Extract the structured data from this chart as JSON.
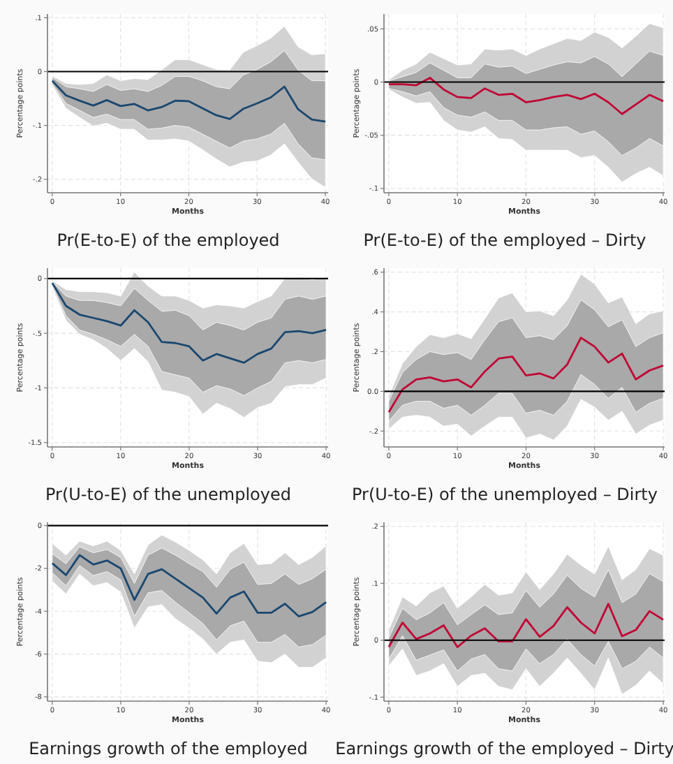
{
  "chart_data": [
    {
      "type": "line",
      "title": "Pr(E-to-E) of the employed",
      "xlabel": "Months",
      "ylabel": "Percentage points",
      "x": [
        0,
        2,
        4,
        6,
        8,
        10,
        12,
        14,
        16,
        18,
        20,
        22,
        24,
        26,
        28,
        30,
        32,
        34,
        36,
        38,
        40
      ],
      "xlim": [
        -0.7,
        40.4
      ],
      "xticks": [
        0,
        10,
        20,
        30,
        40
      ],
      "ylim": [
        -0.225,
        0.107
      ],
      "yticks": [
        {
          "value": 0.1,
          "label": ".1"
        },
        0,
        {
          "value": -0.1,
          "label": "-.1"
        },
        {
          "value": -0.2,
          "label": "-.2"
        }
      ],
      "grid": true,
      "ref_lines": [
        {
          "axis": "y",
          "value": 0,
          "color": "#000000"
        }
      ],
      "series": [
        {
          "type": "line",
          "color": "#d2d2d2",
          "values": [
            null,
            null,
            null,
            null,
            null,
            null,
            null,
            null,
            null,
            null,
            null,
            null,
            null,
            null,
            null,
            null,
            null,
            null,
            null,
            null,
            null
          ],
          "lower": [
            -0.025,
            -0.068,
            -0.085,
            -0.101,
            -0.096,
            -0.107,
            -0.107,
            -0.127,
            -0.127,
            -0.125,
            -0.129,
            -0.145,
            -0.162,
            -0.177,
            -0.168,
            -0.166,
            -0.155,
            -0.134,
            -0.168,
            -0.199,
            -0.215
          ],
          "upper": [
            -0.008,
            -0.022,
            -0.024,
            -0.022,
            -0.006,
            -0.017,
            -0.013,
            -0.015,
            0.003,
            0.022,
            0.022,
            0.013,
            0.004,
            0.003,
            0.036,
            0.048,
            0.062,
            0.084,
            0.046,
            0.031,
            0.033
          ]
        },
        {
          "type": "line",
          "color": "#a9a9a9",
          "values": [
            null,
            null,
            null,
            null,
            null,
            null,
            null,
            null,
            null,
            null,
            null,
            null,
            null,
            null,
            null,
            null,
            null,
            null,
            null,
            null,
            null
          ],
          "lower": [
            -0.022,
            -0.059,
            -0.072,
            -0.085,
            -0.079,
            -0.089,
            -0.089,
            -0.107,
            -0.105,
            -0.1,
            -0.103,
            -0.116,
            -0.129,
            -0.142,
            -0.129,
            -0.125,
            -0.116,
            -0.096,
            -0.134,
            -0.16,
            -0.164
          ],
          "upper": [
            -0.011,
            -0.028,
            -0.032,
            -0.037,
            -0.024,
            -0.035,
            -0.032,
            -0.037,
            -0.026,
            -0.009,
            -0.009,
            -0.017,
            -0.028,
            -0.032,
            -0.006,
            0.004,
            0.018,
            0.039,
            0.003,
            -0.017,
            -0.017
          ]
        },
        {
          "type": "line",
          "color": "#1a476f",
          "values": [
            -0.017,
            -0.044,
            -0.054,
            -0.063,
            -0.053,
            -0.064,
            -0.06,
            -0.072,
            -0.066,
            -0.054,
            -0.055,
            -0.068,
            -0.081,
            -0.088,
            -0.069,
            -0.059,
            -0.048,
            -0.028,
            -0.07,
            -0.089,
            -0.093
          ]
        }
      ]
    },
    {
      "type": "line",
      "title": "Pr(E-to-E) of the employed – Dirty",
      "xlabel": "Months",
      "ylabel": "Percentage points",
      "x": [
        0,
        2,
        4,
        6,
        8,
        10,
        12,
        14,
        16,
        18,
        20,
        22,
        24,
        26,
        28,
        30,
        32,
        34,
        36,
        38,
        40
      ],
      "xlim": [
        -0.7,
        40.2
      ],
      "xticks": [
        0,
        10,
        20,
        30,
        40
      ],
      "ylim": [
        -0.104,
        0.064
      ],
      "yticks": [
        {
          "value": 0.05,
          "label": ".05"
        },
        0,
        {
          "value": -0.05,
          "label": "-.05"
        },
        {
          "value": -0.1,
          "label": "-.1"
        }
      ],
      "grid": true,
      "ref_lines": [
        {
          "axis": "y",
          "value": 0,
          "color": "#000000"
        }
      ],
      "series": [
        {
          "type": "line",
          "color": "#d2d2d2",
          "values": [
            null,
            null,
            null,
            null,
            null,
            null,
            null,
            null,
            null,
            null,
            null,
            null,
            null,
            null,
            null,
            null,
            null,
            null,
            null,
            null,
            null
          ],
          "lower": [
            -0.007,
            -0.014,
            -0.02,
            -0.019,
            -0.036,
            -0.045,
            -0.047,
            -0.042,
            -0.053,
            -0.054,
            -0.064,
            -0.064,
            -0.064,
            -0.064,
            -0.071,
            -0.069,
            -0.08,
            -0.094,
            -0.086,
            -0.08,
            -0.088
          ],
          "upper": [
            0.002,
            0.011,
            0.017,
            0.028,
            0.022,
            0.016,
            0.017,
            0.031,
            0.03,
            0.031,
            0.025,
            0.031,
            0.036,
            0.041,
            0.039,
            0.047,
            0.042,
            0.032,
            0.043,
            0.055,
            0.051
          ]
        },
        {
          "type": "line",
          "color": "#a9a9a9",
          "values": [
            null,
            null,
            null,
            null,
            null,
            null,
            null,
            null,
            null,
            null,
            null,
            null,
            null,
            null,
            null,
            null,
            null,
            null,
            null,
            null,
            null
          ],
          "lower": [
            -0.006,
            -0.009,
            -0.013,
            -0.009,
            -0.024,
            -0.031,
            -0.033,
            -0.028,
            -0.036,
            -0.036,
            -0.045,
            -0.045,
            -0.043,
            -0.042,
            -0.049,
            -0.046,
            -0.056,
            -0.069,
            -0.062,
            -0.053,
            -0.06
          ],
          "upper": [
            0.001,
            0.005,
            0.009,
            0.018,
            0.011,
            0.004,
            0.004,
            0.017,
            0.014,
            0.015,
            0.008,
            0.012,
            0.016,
            0.019,
            0.018,
            0.024,
            0.017,
            0.005,
            0.017,
            0.029,
            0.025
          ]
        },
        {
          "type": "line",
          "color": "#c10534",
          "values": [
            -0.002,
            -0.002,
            -0.003,
            0.004,
            -0.007,
            -0.014,
            -0.015,
            -0.006,
            -0.012,
            -0.011,
            -0.019,
            -0.017,
            -0.014,
            -0.012,
            -0.016,
            -0.011,
            -0.019,
            -0.03,
            -0.021,
            -0.012,
            -0.018
          ]
        }
      ]
    },
    {
      "type": "line",
      "title": "Pr(U-to-E) of the unemployed",
      "xlabel": "Months",
      "ylabel": "Percentage points",
      "x": [
        0,
        2,
        4,
        6,
        8,
        10,
        12,
        14,
        16,
        18,
        20,
        22,
        24,
        26,
        28,
        30,
        32,
        34,
        36,
        38,
        40
      ],
      "xlim": [
        -0.7,
        40.3
      ],
      "xticks": [
        0,
        10,
        20,
        30,
        40
      ],
      "ylim": [
        -1.54,
        0.095
      ],
      "yticks": [
        0,
        {
          "value": -0.5,
          "label": "-.5"
        },
        -1,
        -1.5
      ],
      "grid": true,
      "ref_lines": [
        {
          "axis": "y",
          "value": 0,
          "color": "#000000"
        }
      ],
      "series": [
        {
          "type": "line",
          "color": "#d2d2d2",
          "values": [
            null,
            null,
            null,
            null,
            null,
            null,
            null,
            null,
            null,
            null,
            null,
            null,
            null,
            null,
            null,
            null,
            null,
            null,
            null,
            null,
            null
          ],
          "lower": [
            -0.08,
            -0.38,
            -0.51,
            -0.56,
            -0.64,
            -0.75,
            -0.64,
            -0.76,
            -1.02,
            -1.04,
            -1.08,
            -1.24,
            -1.14,
            -1.19,
            -1.27,
            -1.18,
            -1.14,
            -0.99,
            -0.97,
            -0.97,
            -0.91
          ],
          "upper": [
            -0.02,
            -0.1,
            -0.12,
            -0.12,
            -0.13,
            -0.16,
            0.06,
            -0.07,
            -0.16,
            -0.16,
            -0.2,
            -0.27,
            -0.24,
            -0.25,
            -0.27,
            -0.21,
            -0.16,
            0,
            0.01,
            -0.01,
            0.01
          ]
        },
        {
          "type": "line",
          "color": "#a9a9a9",
          "values": [
            null,
            null,
            null,
            null,
            null,
            null,
            null,
            null,
            null,
            null,
            null,
            null,
            null,
            null,
            null,
            null,
            null,
            null,
            null,
            null,
            null
          ],
          "lower": [
            -0.06,
            -0.34,
            -0.47,
            -0.51,
            -0.56,
            -0.62,
            -0.51,
            -0.62,
            -0.85,
            -0.88,
            -0.91,
            -1.04,
            -0.98,
            -1.01,
            -1.07,
            -1,
            -0.94,
            -0.77,
            -0.75,
            -0.77,
            -0.74
          ],
          "upper": [
            -0.03,
            -0.16,
            -0.2,
            -0.2,
            -0.22,
            -0.25,
            -0.09,
            -0.2,
            -0.3,
            -0.29,
            -0.34,
            -0.47,
            -0.4,
            -0.43,
            -0.47,
            -0.4,
            -0.36,
            -0.19,
            -0.16,
            -0.19,
            -0.16
          ]
        },
        {
          "type": "line",
          "color": "#1a476f",
          "values": [
            -0.04,
            -0.25,
            -0.33,
            -0.36,
            -0.39,
            -0.43,
            -0.29,
            -0.4,
            -0.58,
            -0.59,
            -0.62,
            -0.75,
            -0.69,
            -0.73,
            -0.77,
            -0.69,
            -0.64,
            -0.49,
            -0.48,
            -0.5,
            -0.47
          ]
        }
      ]
    },
    {
      "type": "line",
      "title": "Pr(U-to-E) of the unemployed – Dirty",
      "xlabel": "Months",
      "ylabel": "Percentage points",
      "x": [
        0,
        2,
        4,
        6,
        8,
        10,
        12,
        14,
        16,
        18,
        20,
        22,
        24,
        26,
        28,
        30,
        32,
        34,
        36,
        38,
        40
      ],
      "xlim": [
        -0.7,
        40.2
      ],
      "xticks": [
        0,
        10,
        20,
        30,
        40
      ],
      "ylim": [
        -0.28,
        0.62
      ],
      "yticks": [
        {
          "value": 0.6,
          "label": ".6"
        },
        {
          "value": 0.4,
          "label": ".4"
        },
        {
          "value": 0.2,
          "label": ".2"
        },
        {
          "value": 0,
          "label": "0.0"
        },
        {
          "value": -0.2,
          "label": "-.2"
        }
      ],
      "grid": true,
      "ref_lines": [
        {
          "axis": "y",
          "value": 0,
          "color": "#000000"
        }
      ],
      "series": [
        {
          "type": "line",
          "color": "#d2d2d2",
          "values": [
            null,
            null,
            null,
            null,
            null,
            null,
            null,
            null,
            null,
            null,
            null,
            null,
            null,
            null,
            null,
            null,
            null,
            null,
            null,
            null,
            null
          ],
          "lower": [
            -0.19,
            -0.13,
            -0.12,
            -0.13,
            -0.175,
            -0.165,
            -0.225,
            -0.175,
            -0.13,
            -0.13,
            -0.235,
            -0.215,
            -0.245,
            -0.175,
            -0.04,
            -0.08,
            -0.145,
            -0.1,
            -0.215,
            -0.17,
            -0.145
          ],
          "upper": [
            -0.025,
            0.14,
            0.225,
            0.285,
            0.27,
            0.29,
            0.265,
            0.365,
            0.47,
            0.495,
            0.4,
            0.405,
            0.38,
            0.46,
            0.59,
            0.54,
            0.445,
            0.475,
            0.34,
            0.39,
            0.405
          ]
        },
        {
          "type": "line",
          "color": "#a9a9a9",
          "values": [
            null,
            null,
            null,
            null,
            null,
            null,
            null,
            null,
            null,
            null,
            null,
            null,
            null,
            null,
            null,
            null,
            null,
            null,
            null,
            null,
            null
          ],
          "lower": [
            -0.15,
            -0.07,
            -0.05,
            -0.05,
            -0.085,
            -0.07,
            -0.12,
            -0.07,
            -0.01,
            -0.01,
            -0.11,
            -0.095,
            -0.12,
            -0.05,
            0.085,
            0.035,
            -0.035,
            0.02,
            -0.105,
            -0.06,
            -0.035
          ],
          "upper": [
            -0.05,
            0.095,
            0.16,
            0.2,
            0.185,
            0.195,
            0.16,
            0.26,
            0.35,
            0.37,
            0.27,
            0.28,
            0.26,
            0.33,
            0.46,
            0.41,
            0.325,
            0.36,
            0.225,
            0.27,
            0.295
          ]
        },
        {
          "type": "line",
          "color": "#c10534",
          "values": [
            -0.105,
            0.01,
            0.06,
            0.07,
            0.05,
            0.06,
            0.02,
            0.1,
            0.165,
            0.175,
            0.08,
            0.09,
            0.065,
            0.135,
            0.27,
            0.225,
            0.145,
            0.19,
            0.06,
            0.105,
            0.13
          ]
        }
      ]
    },
    {
      "type": "line",
      "title": "Earnings growth of the employed",
      "xlabel": "Months",
      "ylabel": "Percentage points",
      "x": [
        0,
        2,
        4,
        6,
        8,
        10,
        12,
        14,
        16,
        18,
        20,
        22,
        24,
        26,
        28,
        30,
        32,
        34,
        36,
        38,
        40
      ],
      "xlim": [
        -0.7,
        40.3
      ],
      "xticks": [
        0,
        10,
        20,
        30,
        40
      ],
      "ylim": [
        -8.2,
        0.15
      ],
      "yticks": [
        0,
        -2,
        -4,
        -6,
        -8
      ],
      "grid": true,
      "ref_lines": [
        {
          "axis": "y",
          "value": 0,
          "color": "#000000"
        }
      ],
      "series": [
        {
          "type": "line",
          "color": "#d2d2d2",
          "values": [
            null,
            null,
            null,
            null,
            null,
            null,
            null,
            null,
            null,
            null,
            null,
            null,
            null,
            null,
            null,
            null,
            null,
            null,
            null,
            null,
            null
          ],
          "lower": [
            -2.59,
            -3.19,
            -2.26,
            -2.81,
            -2.66,
            -3.1,
            -4.79,
            -3.8,
            -3.69,
            -4.35,
            -4.79,
            -5.3,
            -6,
            -5.45,
            -5.34,
            -6.33,
            -6.4,
            -6,
            -6.62,
            -6.62,
            -6.18
          ],
          "upper": [
            -0.84,
            -1.38,
            -0.73,
            -0.95,
            -0.73,
            -1.16,
            -2.26,
            -0.9,
            -0.44,
            -0.77,
            -1.16,
            -1.6,
            -2.26,
            -1.27,
            -0.84,
            -1.82,
            -1.78,
            -1.27,
            -1.82,
            -1.49,
            -0.95
          ]
        },
        {
          "type": "line",
          "color": "#a9a9a9",
          "values": [
            null,
            null,
            null,
            null,
            null,
            null,
            null,
            null,
            null,
            null,
            null,
            null,
            null,
            null,
            null,
            null,
            null,
            null,
            null,
            null,
            null
          ],
          "lower": [
            -2.2,
            -2.81,
            -1.87,
            -2.33,
            -2.15,
            -2.53,
            -4.24,
            -3.14,
            -3.03,
            -3.58,
            -4.07,
            -4.57,
            -5.34,
            -4.68,
            -4.46,
            -5.45,
            -5.45,
            -5.08,
            -5.67,
            -5.56,
            -5.12
          ],
          "upper": [
            -1.32,
            -1.78,
            -0.99,
            -1.27,
            -1.12,
            -1.49,
            -2.7,
            -1.38,
            -1.05,
            -1.38,
            -1.78,
            -2.15,
            -2.88,
            -2.04,
            -1.71,
            -2.75,
            -2.7,
            -2.26,
            -2.75,
            -2.48,
            -2.04
          ]
        },
        {
          "type": "line",
          "color": "#1a476f",
          "values": [
            -1.76,
            -2.31,
            -1.38,
            -1.82,
            -1.63,
            -2,
            -3.47,
            -2.26,
            -2.04,
            -2.48,
            -2.92,
            -3.36,
            -4.11,
            -3.36,
            -3.08,
            -4.07,
            -4.07,
            -3.65,
            -4.24,
            -4.04,
            -3.58
          ]
        }
      ]
    },
    {
      "type": "line",
      "title": "Earnings growth of the employed – Dirty",
      "xlabel": "Months",
      "ylabel": "Percentage points",
      "x": [
        0,
        2,
        4,
        6,
        8,
        10,
        12,
        14,
        16,
        18,
        20,
        22,
        24,
        26,
        28,
        30,
        32,
        34,
        36,
        38,
        40
      ],
      "xlim": [
        -0.7,
        40.2
      ],
      "xticks": [
        0,
        10,
        20,
        30,
        40
      ],
      "ylim": [
        -0.107,
        0.207
      ],
      "yticks": [
        {
          "value": 0.2,
          "label": ".2"
        },
        {
          "value": 0.1,
          "label": ".1"
        },
        0,
        {
          "value": -0.1,
          "label": "-.1"
        }
      ],
      "grid": true,
      "ref_lines": [
        {
          "axis": "y",
          "value": 0,
          "color": "#000000"
        }
      ],
      "series": [
        {
          "type": "line",
          "color": "#d2d2d2",
          "values": [
            null,
            null,
            null,
            null,
            null,
            null,
            null,
            null,
            null,
            null,
            null,
            null,
            null,
            null,
            null,
            null,
            null,
            null,
            null,
            null,
            null
          ],
          "lower": [
            -0.045,
            -0.015,
            -0.062,
            -0.054,
            -0.041,
            -0.081,
            -0.062,
            -0.058,
            -0.081,
            -0.087,
            -0.05,
            -0.081,
            -0.058,
            -0.031,
            -0.058,
            -0.087,
            -0.031,
            -0.095,
            -0.079,
            -0.054,
            -0.076
          ],
          "upper": [
            0.018,
            0.076,
            0.06,
            0.083,
            0.095,
            0.056,
            0.076,
            0.098,
            0.079,
            0.083,
            0.12,
            0.089,
            0.116,
            0.151,
            0.132,
            0.116,
            0.165,
            0.106,
            0.124,
            0.161,
            0.149
          ]
        },
        {
          "type": "line",
          "color": "#a9a9a9",
          "values": [
            null,
            null,
            null,
            null,
            null,
            null,
            null,
            null,
            null,
            null,
            null,
            null,
            null,
            null,
            null,
            null,
            null,
            null,
            null,
            null,
            null
          ],
          "lower": [
            -0.033,
            0.008,
            -0.035,
            -0.026,
            -0.017,
            -0.054,
            -0.033,
            -0.025,
            -0.05,
            -0.054,
            -0.015,
            -0.041,
            -0.025,
            0.002,
            -0.025,
            -0.045,
            -0.002,
            -0.05,
            -0.037,
            -0.012,
            -0.031
          ],
          "upper": [
            0.004,
            0.056,
            0.036,
            0.048,
            0.066,
            0.027,
            0.045,
            0.062,
            0.045,
            0.048,
            0.087,
            0.058,
            0.081,
            0.114,
            0.091,
            0.076,
            0.124,
            0.066,
            0.081,
            0.117,
            0.103
          ]
        },
        {
          "type": "line",
          "color": "#c10534",
          "values": [
            -0.012,
            0.031,
            0.002,
            0.012,
            0.026,
            -0.012,
            0.008,
            0.021,
            -0.002,
            -0.002,
            0.037,
            0.006,
            0.025,
            0.058,
            0.031,
            0.012,
            0.064,
            0.007,
            0.018,
            0.051,
            0.036
          ]
        }
      ]
    }
  ]
}
